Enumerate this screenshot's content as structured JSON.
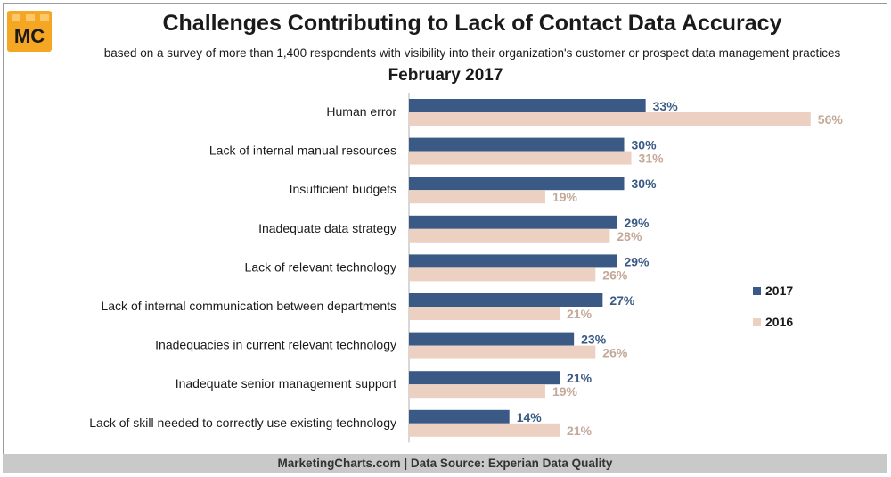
{
  "header": {
    "logo_text": "MC",
    "title": "Challenges Contributing to Lack of Contact Data Accuracy",
    "subtitle": "based on a survey of more than 1,400 respondents with visibility into their organization's customer or prospect data management practices",
    "period": "February 2017"
  },
  "footer": {
    "source": "MarketingCharts.com | Data Source: Experian Data Quality"
  },
  "colors": {
    "series_2017": "#3a5a85",
    "series_2016": "#ecd1c2",
    "label_2016": "#c4a898",
    "logo_bg": "#f5a623"
  },
  "legend": [
    {
      "name": "2017",
      "color": "#3a5a85"
    },
    {
      "name": "2016",
      "color": "#ecd1c2"
    }
  ],
  "chart_data": {
    "type": "bar",
    "orientation": "horizontal",
    "title": "",
    "xlabel": "",
    "ylabel": "",
    "xlim": [
      0,
      60
    ],
    "grid": false,
    "legend_position": "right",
    "value_suffix": "%",
    "categories": [
      "Human error",
      "Lack of internal manual resources",
      "Insufficient budgets",
      "Inadequate data strategy",
      "Lack of relevant technology",
      "Lack of internal communication between departments",
      "Inadequacies in current relevant technology",
      "Inadequate senior management support",
      "Lack of skill needed to correctly use existing technology"
    ],
    "series": [
      {
        "name": "2017",
        "values": [
          33,
          30,
          30,
          29,
          29,
          27,
          23,
          21,
          14
        ]
      },
      {
        "name": "2016",
        "values": [
          56,
          31,
          19,
          28,
          26,
          21,
          26,
          19,
          21
        ]
      }
    ]
  }
}
